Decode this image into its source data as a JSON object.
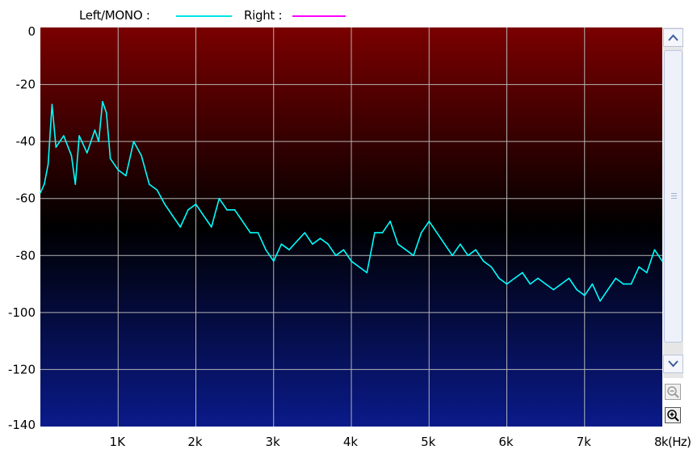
{
  "legend": {
    "left_label": "Left/MONO :",
    "right_label": "Right :",
    "left_color": "#00e5e5",
    "right_color": "#ff00ff"
  },
  "scrollbar": {
    "up_icon": "chevron-up-icon",
    "down_icon": "chevron-down-icon",
    "zoom_out_icon": "zoom-out-icon",
    "zoom_in_icon": "zoom-in-icon"
  },
  "colors": {
    "plot_top": "#7a0000",
    "plot_mid": "#000000",
    "plot_bottom": "#0a1a8a",
    "grid": "#b4b4b4",
    "trace": "#00ffff"
  },
  "chart_data": {
    "type": "line",
    "x_unit": "Hz",
    "xlim": [
      0,
      8000
    ],
    "ylim": [
      -140,
      0
    ],
    "grid": true,
    "legend_placement": "top",
    "x_ticks": [
      {
        "value": 1000,
        "label": "1K"
      },
      {
        "value": 2000,
        "label": "2k"
      },
      {
        "value": 3000,
        "label": "3k"
      },
      {
        "value": 4000,
        "label": "4k"
      },
      {
        "value": 5000,
        "label": "5k"
      },
      {
        "value": 6000,
        "label": "6k"
      },
      {
        "value": 7000,
        "label": "7k"
      },
      {
        "value": 8000,
        "label": "8k(Hz)"
      }
    ],
    "y_ticks": [
      {
        "value": 0,
        "label": "0"
      },
      {
        "value": -20,
        "label": "-20"
      },
      {
        "value": -40,
        "label": "-40"
      },
      {
        "value": -60,
        "label": "-60"
      },
      {
        "value": -80,
        "label": "-80"
      },
      {
        "value": -100,
        "label": "-100"
      },
      {
        "value": -120,
        "label": "-120"
      },
      {
        "value": -140,
        "label": "-140"
      }
    ],
    "series": [
      {
        "name": "Left/MONO",
        "color": "#00ffff",
        "x": [
          0,
          50,
          100,
          150,
          200,
          300,
          400,
          450,
          500,
          600,
          700,
          750,
          800,
          850,
          900,
          1000,
          1100,
          1200,
          1300,
          1400,
          1500,
          1600,
          1700,
          1800,
          1900,
          2000,
          2100,
          2200,
          2300,
          2400,
          2500,
          2600,
          2700,
          2800,
          2900,
          3000,
          3100,
          3200,
          3300,
          3400,
          3500,
          3600,
          3700,
          3800,
          3900,
          4000,
          4100,
          4200,
          4300,
          4400,
          4500,
          4600,
          4700,
          4800,
          4900,
          5000,
          5100,
          5200,
          5300,
          5400,
          5500,
          5600,
          5700,
          5800,
          5900,
          6000,
          6100,
          6200,
          6300,
          6400,
          6500,
          6600,
          6700,
          6800,
          6900,
          7000,
          7100,
          7200,
          7300,
          7400,
          7500,
          7600,
          7700,
          7800,
          7900,
          8000
        ],
        "y": [
          -58,
          -55,
          -48,
          -27,
          -42,
          -38,
          -45,
          -55,
          -38,
          -44,
          -36,
          -40,
          -26,
          -30,
          -46,
          -50,
          -52,
          -40,
          -45,
          -55,
          -57,
          -62,
          -66,
          -70,
          -64,
          -62,
          -66,
          -70,
          -60,
          -64,
          -64,
          -68,
          -72,
          -72,
          -78,
          -82,
          -76,
          -78,
          -75,
          -72,
          -76,
          -74,
          -76,
          -80,
          -78,
          -82,
          -84,
          -86,
          -72,
          -72,
          -68,
          -76,
          -78,
          -80,
          -72,
          -68,
          -72,
          -76,
          -80,
          -76,
          -80,
          -78,
          -82,
          -84,
          -88,
          -90,
          -88,
          -86,
          -90,
          -88,
          -90,
          -92,
          -90,
          -88,
          -92,
          -94,
          -90,
          -96,
          -92,
          -88,
          -90,
          -90,
          -84,
          -86,
          -78,
          -82
        ]
      }
    ]
  }
}
